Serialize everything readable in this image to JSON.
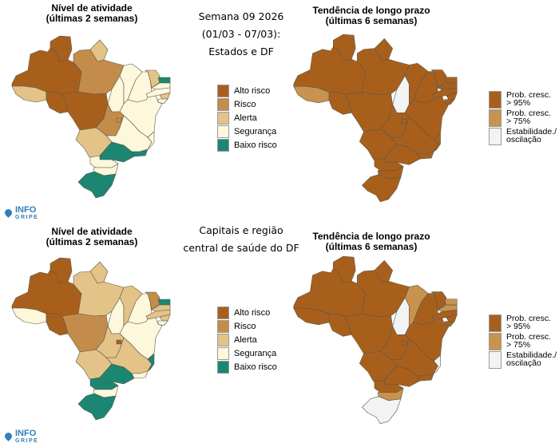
{
  "header": {
    "title_lines": [
      "Semana 09 2026",
      "(01/03 - 07/03):",
      "Estados e DF"
    ]
  },
  "section2": {
    "title_lines": [
      "Capitais e região",
      "central de saúde do DF"
    ]
  },
  "titles": {
    "activity": [
      "Nível de atividade",
      "(últimas 2 semanas)"
    ],
    "trend": [
      "Tendência de longo prazo",
      "(últimas 6 semanas)"
    ]
  },
  "logo": {
    "line1": "INFO",
    "line2": "GRIPE"
  },
  "colors": {
    "alto": "#a95f1c",
    "risco": "#c48c4b",
    "alerta": "#e3c388",
    "seguranca": "#fdf7dc",
    "baixo": "#1b8672",
    "p95": "#a95f1c",
    "p75": "#c8924f",
    "estab": "#f3f3f3"
  },
  "legend_activity": [
    {
      "key": "alto",
      "label": "Alto risco"
    },
    {
      "key": "risco",
      "label": "Risco"
    },
    {
      "key": "alerta",
      "label": "Alerta"
    },
    {
      "key": "seguranca",
      "label": "Segurança"
    },
    {
      "key": "baixo",
      "label": "Baixo risco"
    }
  ],
  "legend_trend": [
    {
      "key": "p95",
      "label": "Prob. cresc. > 95%"
    },
    {
      "key": "p75",
      "label": "Prob. cresc. > 75%"
    },
    {
      "key": "estab",
      "label": "Estabilidade./ oscilação"
    }
  ],
  "maps": {
    "states_activity": {
      "AM": "alto",
      "RR": "alto",
      "AP": "alerta",
      "PA": "risco",
      "AC": "alerta",
      "RO": "alto",
      "MT": "alto",
      "TO": "seguranca",
      "MA": "seguranca",
      "PI": "seguranca",
      "CE": "alerta",
      "RN": "baixo",
      "PB": "seguranca",
      "PE": "seguranca",
      "AL": "alerta",
      "SE": "seguranca",
      "BA": "seguranca",
      "GO": "risco",
      "DF": "risco",
      "MG": "seguranca",
      "ES": "seguranca",
      "RJ": "baixo",
      "MS": "alerta",
      "SP": "baixo",
      "PR": "seguranca",
      "SC": "seguranca",
      "RS": "baixo"
    },
    "states_trend": {
      "AM": "p95",
      "RR": "p95",
      "AP": "p95",
      "PA": "p95",
      "AC": "p75",
      "RO": "p95",
      "MT": "p95",
      "TO": "estab",
      "MA": "p95",
      "PI": "p95",
      "CE": "p95",
      "RN": "p95",
      "PB": "p95",
      "PE": "p95",
      "AL": "p95",
      "SE": "p95",
      "BA": "p95",
      "GO": "p95",
      "DF": "p95",
      "MG": "p95",
      "ES": "p95",
      "RJ": "p95",
      "MS": "p95",
      "SP": "p95",
      "PR": "p95",
      "SC": "p95",
      "RS": "p95"
    },
    "capitals_activity": {
      "AM": "alto",
      "RR": "alto",
      "AP": "alerta",
      "PA": "alerta",
      "AC": "seguranca",
      "RO": "alto",
      "MT": "risco",
      "TO": "seguranca",
      "MA": "alerta",
      "PI": "seguranca",
      "CE": "risco",
      "RN": "baixo",
      "PB": "alerta",
      "PE": "alerta",
      "AL": "alerta",
      "SE": "seguranca",
      "BA": "seguranca",
      "GO": "alerta",
      "DF": "alto",
      "MG": "alerta",
      "ES": "baixo",
      "RJ": "seguranca",
      "MS": "alerta",
      "SP": "baixo",
      "PR": "baixo",
      "SC": "seguranca",
      "RS": "baixo"
    },
    "capitals_trend": {
      "AM": "p95",
      "RR": "p95",
      "AP": "p95",
      "PA": "p95",
      "AC": "p95",
      "RO": "p95",
      "MT": "p95",
      "TO": "estab",
      "MA": "p75",
      "PI": "p95",
      "CE": "p95",
      "RN": "p75",
      "PB": "p75",
      "PE": "p95",
      "AL": "p95",
      "SE": "p95",
      "BA": "p95",
      "GO": "p95",
      "DF": "p95",
      "MG": "p95",
      "ES": "estab",
      "RJ": "p95",
      "MS": "p95",
      "SP": "p95",
      "PR": "p95",
      "SC": "p75",
      "RS": "estab"
    }
  }
}
